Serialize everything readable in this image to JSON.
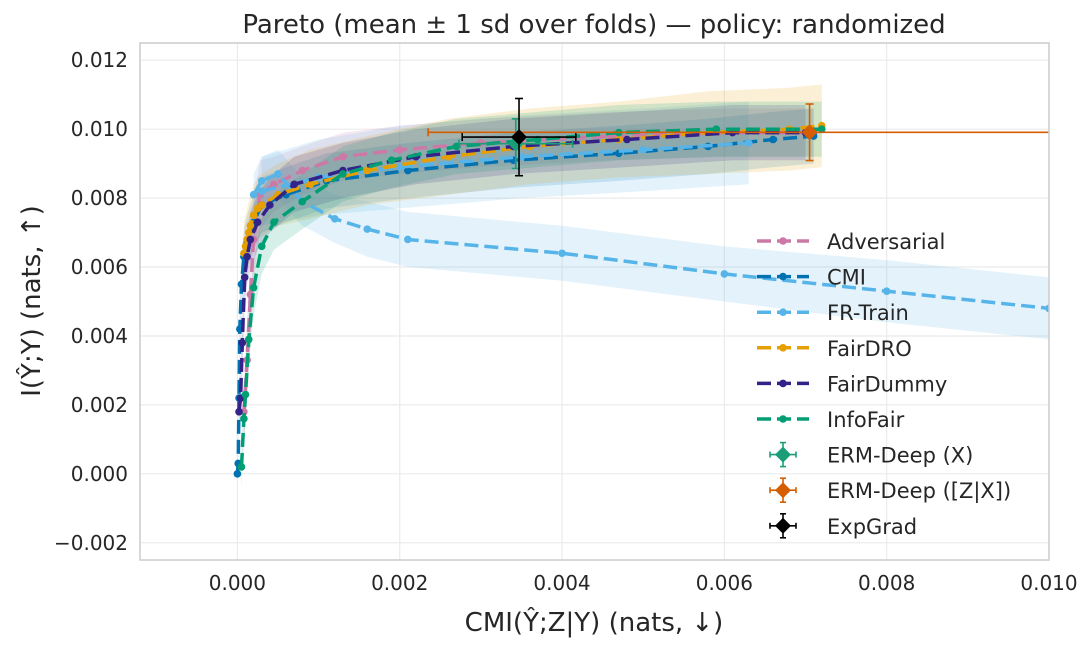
{
  "chart_data": {
    "type": "line",
    "title": "Pareto (mean ± 1 sd over folds) — policy: randomized",
    "xlabel": "CMI(Ŷ;Z|Y) (nats, ↓)",
    "ylabel": "I(Ŷ;Y) (nats, ↑)",
    "xlim": [
      -0.0012,
      0.01
    ],
    "ylim": [
      -0.0025,
      0.0125
    ],
    "xticks": [
      0.0,
      0.002,
      0.004,
      0.006,
      0.008,
      0.01
    ],
    "xtick_labels": [
      "0.000",
      "0.002",
      "0.004",
      "0.006",
      "0.008",
      "0.010"
    ],
    "yticks": [
      -0.002,
      0.0,
      0.002,
      0.004,
      0.006,
      0.008,
      0.01,
      0.012
    ],
    "ytick_labels": [
      "−0.002",
      "0.000",
      "0.002",
      "0.004",
      "0.006",
      "0.008",
      "0.010",
      "0.012"
    ],
    "grid": true,
    "legend_position": "center-right",
    "series": [
      {
        "name": "Adversarial",
        "color": "#cc79a7",
        "x": [
          8e-05,
          0.00012,
          0.00016,
          0.0002,
          0.00028,
          0.00045,
          0.0008,
          0.0013,
          0.002,
          0.003,
          0.0046,
          0.0061,
          0.0071
        ],
        "y": [
          0.0018,
          0.0033,
          0.0052,
          0.0068,
          0.0081,
          0.0084,
          0.0088,
          0.0092,
          0.0094,
          0.0096,
          0.0098,
          0.0099,
          0.0099
        ],
        "band": [
          0.0009,
          0.0012,
          0.0013,
          0.0012,
          0.001,
          0.0008,
          0.0007,
          0.0007,
          0.0007,
          0.0007,
          0.0007,
          0.0007,
          0.0007
        ]
      },
      {
        "name": "CMI",
        "color": "#0072b2",
        "x": [
          0.0,
          1e-05,
          2e-05,
          3e-05,
          5e-05,
          8e-05,
          0.00012,
          0.0002,
          0.0003,
          0.0006,
          0.0011,
          0.0021,
          0.0034,
          0.0047,
          0.0058,
          0.0066,
          0.0071
        ],
        "y": [
          0.0,
          0.0003,
          0.0022,
          0.0042,
          0.0055,
          0.0063,
          0.0067,
          0.0073,
          0.0078,
          0.0081,
          0.0085,
          0.0088,
          0.0091,
          0.0093,
          0.0095,
          0.0097,
          0.0098
        ],
        "band": [
          0.0002,
          0.0003,
          0.0006,
          0.0008,
          0.0008,
          0.0008,
          0.0008,
          0.0008,
          0.0008,
          0.0008,
          0.0008,
          0.0008,
          0.0008,
          0.0008,
          0.0008,
          0.0008,
          0.0008
        ]
      },
      {
        "name": "FR-Train",
        "color": "#56b4e9",
        "x": [
          0.0002,
          0.0003,
          0.0005,
          0.0008,
          0.0012,
          0.0016,
          0.0021,
          0.004,
          0.006,
          0.008,
          0.01
        ],
        "y": [
          0.0081,
          0.0085,
          0.0087,
          0.0079,
          0.0074,
          0.0071,
          0.0068,
          0.0064,
          0.0058,
          0.0053,
          0.0048
        ],
        "band": [
          0.0006,
          0.0007,
          0.0007,
          0.0007,
          0.0007,
          0.0008,
          0.0008,
          0.0008,
          0.0008,
          0.0009,
          0.0009
        ]
      },
      {
        "name": "FR-Train",
        "color": "#56b4e9",
        "legend": false,
        "x": [
          0.0003,
          0.001,
          0.002,
          0.0035,
          0.005,
          0.0063
        ],
        "y": [
          0.0082,
          0.0086,
          0.0089,
          0.0092,
          0.0094,
          0.0096
        ],
        "band": [
          0.001,
          0.0011,
          0.0012,
          0.0012,
          0.0012,
          0.0012
        ]
      },
      {
        "name": "FairDRO",
        "color": "#e69f00",
        "x": [
          8e-05,
          0.0001,
          0.00012,
          0.00014,
          0.00016,
          0.0002,
          0.00025,
          0.0003,
          0.0005,
          0.0009,
          0.0016,
          0.0026,
          0.0036,
          0.0047,
          0.0058,
          0.0068,
          0.0072
        ],
        "y": [
          0.0064,
          0.0066,
          0.0068,
          0.007,
          0.0072,
          0.0075,
          0.0077,
          0.0078,
          0.0081,
          0.0084,
          0.0088,
          0.0092,
          0.0095,
          0.0097,
          0.0099,
          0.01,
          0.0101
        ],
        "band": [
          0.0009,
          0.0009,
          0.0009,
          0.0009,
          0.0009,
          0.0009,
          0.0009,
          0.0009,
          0.0009,
          0.001,
          0.001,
          0.0011,
          0.0011,
          0.0011,
          0.0012,
          0.0012,
          0.0012
        ]
      },
      {
        "name": "FairDummy",
        "color": "#332288",
        "x": [
          2e-05,
          4e-05,
          6e-05,
          9e-05,
          0.00012,
          0.00016,
          0.00025,
          0.0004,
          0.0007,
          0.0013,
          0.0022,
          0.0034,
          0.0048,
          0.0061,
          0.007
        ],
        "y": [
          0.0018,
          0.0022,
          0.0038,
          0.0057,
          0.0063,
          0.0068,
          0.0073,
          0.0078,
          0.0084,
          0.0088,
          0.0092,
          0.0095,
          0.0097,
          0.0099,
          0.0099
        ],
        "band": [
          0.0006,
          0.0007,
          0.0008,
          0.0008,
          0.0008,
          0.0008,
          0.0008,
          0.0008,
          0.0008,
          0.0008,
          0.0008,
          0.0008,
          0.0008,
          0.0008,
          0.0008
        ]
      },
      {
        "name": "InfoFair",
        "color": "#009e73",
        "x": [
          5e-05,
          8e-05,
          0.0001,
          0.00014,
          0.0002,
          0.0003,
          0.00045,
          0.0008,
          0.0013,
          0.0019,
          0.0027,
          0.0037,
          0.0047,
          0.0059,
          0.0072
        ],
        "y": [
          0.0002,
          0.0016,
          0.0023,
          0.0039,
          0.0054,
          0.0066,
          0.0073,
          0.0079,
          0.0087,
          0.0091,
          0.0095,
          0.0097,
          0.0099,
          0.01,
          0.01
        ],
        "band": [
          0.0006,
          0.0008,
          0.0008,
          0.0008,
          0.0008,
          0.0008,
          0.0008,
          0.0008,
          0.0008,
          0.0008,
          0.0008,
          0.0008,
          0.0008,
          0.0008,
          0.0008
        ]
      }
    ],
    "points": [
      {
        "name": "ERM-Deep (X)",
        "color": "#1b9e77",
        "x": 0.00343,
        "y": 0.00958,
        "xerr": 0.0007,
        "yerr": 0.00072
      },
      {
        "name": "ERM-Deep ([Z|X])",
        "color": "#d55e00",
        "x": 0.00705,
        "y": 0.00991,
        "xerr": 0.0047,
        "yerr": 0.00082
      },
      {
        "name": "ExpGrad",
        "color": "#000000",
        "x": 0.00347,
        "y": 0.00977,
        "xerr": 0.0007,
        "yerr": 0.00112
      }
    ]
  }
}
